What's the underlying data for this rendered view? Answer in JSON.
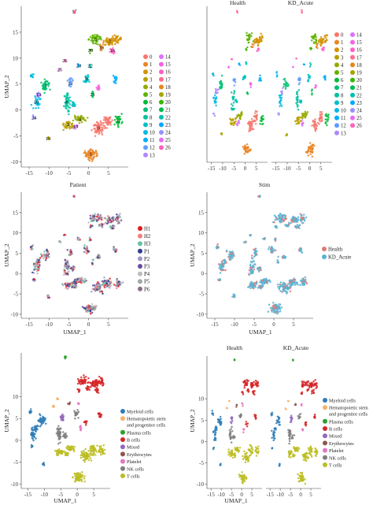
{
  "palette": {
    "clusters": [
      "#F8766D",
      "#E88526",
      "#D39200",
      "#B79F00",
      "#93AA00",
      "#5EB300",
      "#00BA38",
      "#00BF74",
      "#00C19F",
      "#00BFC4",
      "#00B9E3",
      "#00ADFA",
      "#619CFF",
      "#AE87FF",
      "#DB72FB",
      "#F564E3",
      "#FF61C3",
      "#FF6C91",
      "#E7861B",
      "#A3A500",
      "#39B600",
      "#00BB4E",
      "#00BFB0",
      "#00A9FF",
      "#9590FF",
      "#E76BF3",
      "#FF62BC"
    ],
    "patients": [
      "#E41A1C",
      "#F08080",
      "#66C2A5",
      "#2C3E8C",
      "#9E9AC8",
      "#6B4C9A",
      "#BDBDBD",
      "#A6A6A6",
      "#8C6D8C"
    ],
    "stim": [
      "#E07A7A",
      "#56B4D3"
    ],
    "celltypes": [
      "#2E7DB7",
      "#F7B26A",
      "#2CA02C",
      "#D62728",
      "#9467BD",
      "#8C564B",
      "#E377C2",
      "#7F7F7F",
      "#BCBD22"
    ]
  },
  "panels": [
    {
      "chart_data": {
        "type": "scatter",
        "title": "",
        "xlabel": "",
        "ylabel": "UMAP_2",
        "xlim": [
          -17,
          10
        ],
        "ylim": [
          -11,
          20
        ],
        "xticks": [
          "-15",
          "-10",
          "-5",
          "0",
          "5"
        ],
        "yticks": [
          "-10",
          "-5",
          "0",
          "5",
          "10",
          "15"
        ],
        "legend": [
          "0",
          "1",
          "2",
          "3",
          "4",
          "5",
          "6",
          "7",
          "8",
          "9",
          "10",
          "11",
          "12",
          "13",
          "14",
          "15",
          "16",
          "17",
          "18",
          "19",
          "20",
          "21",
          "22",
          "23",
          "24",
          "25",
          "26"
        ],
        "cluster_labels": [
          "17",
          "26",
          "25",
          "20",
          "23",
          "2",
          "5",
          "16",
          "18",
          "12",
          "24",
          "7",
          "9",
          "13",
          "22",
          "10",
          "21",
          "14",
          "19",
          "4",
          "6",
          "3",
          "0",
          "1",
          "8"
        ]
      }
    },
    {
      "chart_data": {
        "type": "scatter",
        "facets": [
          "Health",
          "KD_Acute"
        ],
        "xlabel": "",
        "ylabel": "",
        "xticks": [
          "-15",
          "-10",
          "-5",
          "0",
          "5",
          "-15",
          "-10",
          "-5",
          "0",
          "5"
        ],
        "legend": [
          "0",
          "1",
          "2",
          "3",
          "4",
          "5",
          "6",
          "7",
          "8",
          "9",
          "10",
          "11",
          "12",
          "13",
          "14",
          "15",
          "16",
          "17",
          "18",
          "19",
          "20",
          "21",
          "22",
          "23",
          "24",
          "25",
          "26"
        ]
      }
    },
    {
      "chart_data": {
        "type": "scatter",
        "title": "Patient",
        "xlabel": "UMAP_1",
        "ylabel": "UMAP_2",
        "xticks": [
          "-15",
          "-10",
          "-5",
          "0",
          "5"
        ],
        "yticks": [
          "-10",
          "-5",
          "0",
          "5",
          "10",
          "15"
        ],
        "legend": [
          "H1",
          "H2",
          "H3",
          "P1",
          "P2",
          "P3",
          "P4",
          "P5",
          "P6"
        ]
      }
    },
    {
      "chart_data": {
        "type": "scatter",
        "title": "Stim",
        "xlabel": "UMAP_1",
        "ylabel": "UMAP_2",
        "xticks": [
          "-15",
          "-10",
          "-5",
          "0",
          "5"
        ],
        "yticks": [
          "-10",
          "-5",
          "0",
          "5",
          "10",
          "15"
        ],
        "legend": [
          "Health",
          "KD_Acute"
        ]
      }
    },
    {
      "chart_data": {
        "type": "scatter",
        "xlabel": "UMAP_1",
        "ylabel": "UMAP_2",
        "xticks": [
          "-15",
          "-10",
          "-5",
          "0",
          "5"
        ],
        "yticks": [
          "-10",
          "-5",
          "0",
          "5",
          "10"
        ],
        "legend": [
          "Myeloid cells",
          "Hematopoietic stem and progenitor cells",
          "Plasma cells",
          "B cells",
          "Mixed",
          "Erythrocytes",
          "Platelet",
          "NK cells",
          "T cells"
        ]
      }
    },
    {
      "chart_data": {
        "type": "scatter",
        "facets": [
          "Health",
          "KD_Acute"
        ],
        "xlabel": "UMAP_1",
        "ylabel": "UMAP_2",
        "xticks": [
          "-15",
          "-10",
          "-5",
          "0",
          "5",
          "-15",
          "-10",
          "-5",
          "0",
          "5"
        ],
        "yticks": [
          "-10",
          "-5",
          "0",
          "5",
          "10"
        ],
        "legend": [
          "Myeloid cells",
          "Hematopoietic stem and progenitor cells",
          "Plasma cells",
          "B cells",
          "Mixed",
          "Erythrocytes",
          "Platelet",
          "NK cells",
          "T cells"
        ]
      }
    }
  ]
}
